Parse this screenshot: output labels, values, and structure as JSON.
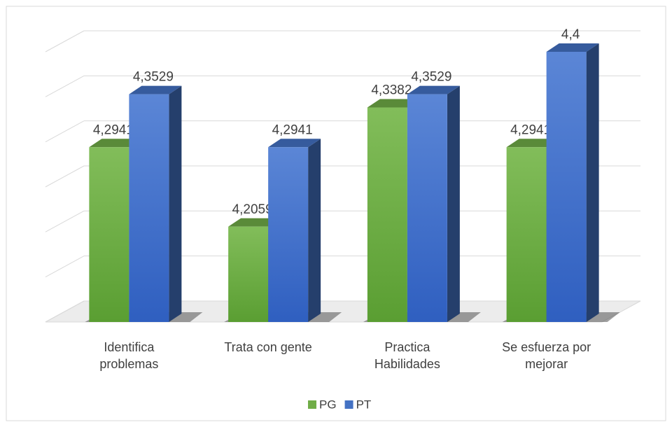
{
  "chart_data": {
    "type": "bar3d",
    "categories": [
      "Identifica problemas",
      "Trata con gente",
      "Practica Habilidades",
      "Se esfuerza por mejorar"
    ],
    "series": [
      {
        "name": "PG",
        "color": "#70ad47",
        "values": [
          4.2941,
          4.2059,
          4.3382,
          4.2941
        ],
        "value_labels": [
          "4,2941",
          "4,2059",
          "4,3382",
          "4,2941"
        ]
      },
      {
        "name": "PT",
        "color": "#4472c4",
        "values": [
          4.3529,
          4.2941,
          4.3529,
          4.4
        ],
        "value_labels": [
          "4,3529",
          "4,2941",
          "4,3529",
          "4,4"
        ]
      }
    ],
    "ylim": [
      4.1,
      4.4
    ],
    "yticks": [
      4.1,
      4.15,
      4.2,
      4.25,
      4.3,
      4.35,
      4.4
    ],
    "grid": true,
    "legend": "bottom"
  }
}
